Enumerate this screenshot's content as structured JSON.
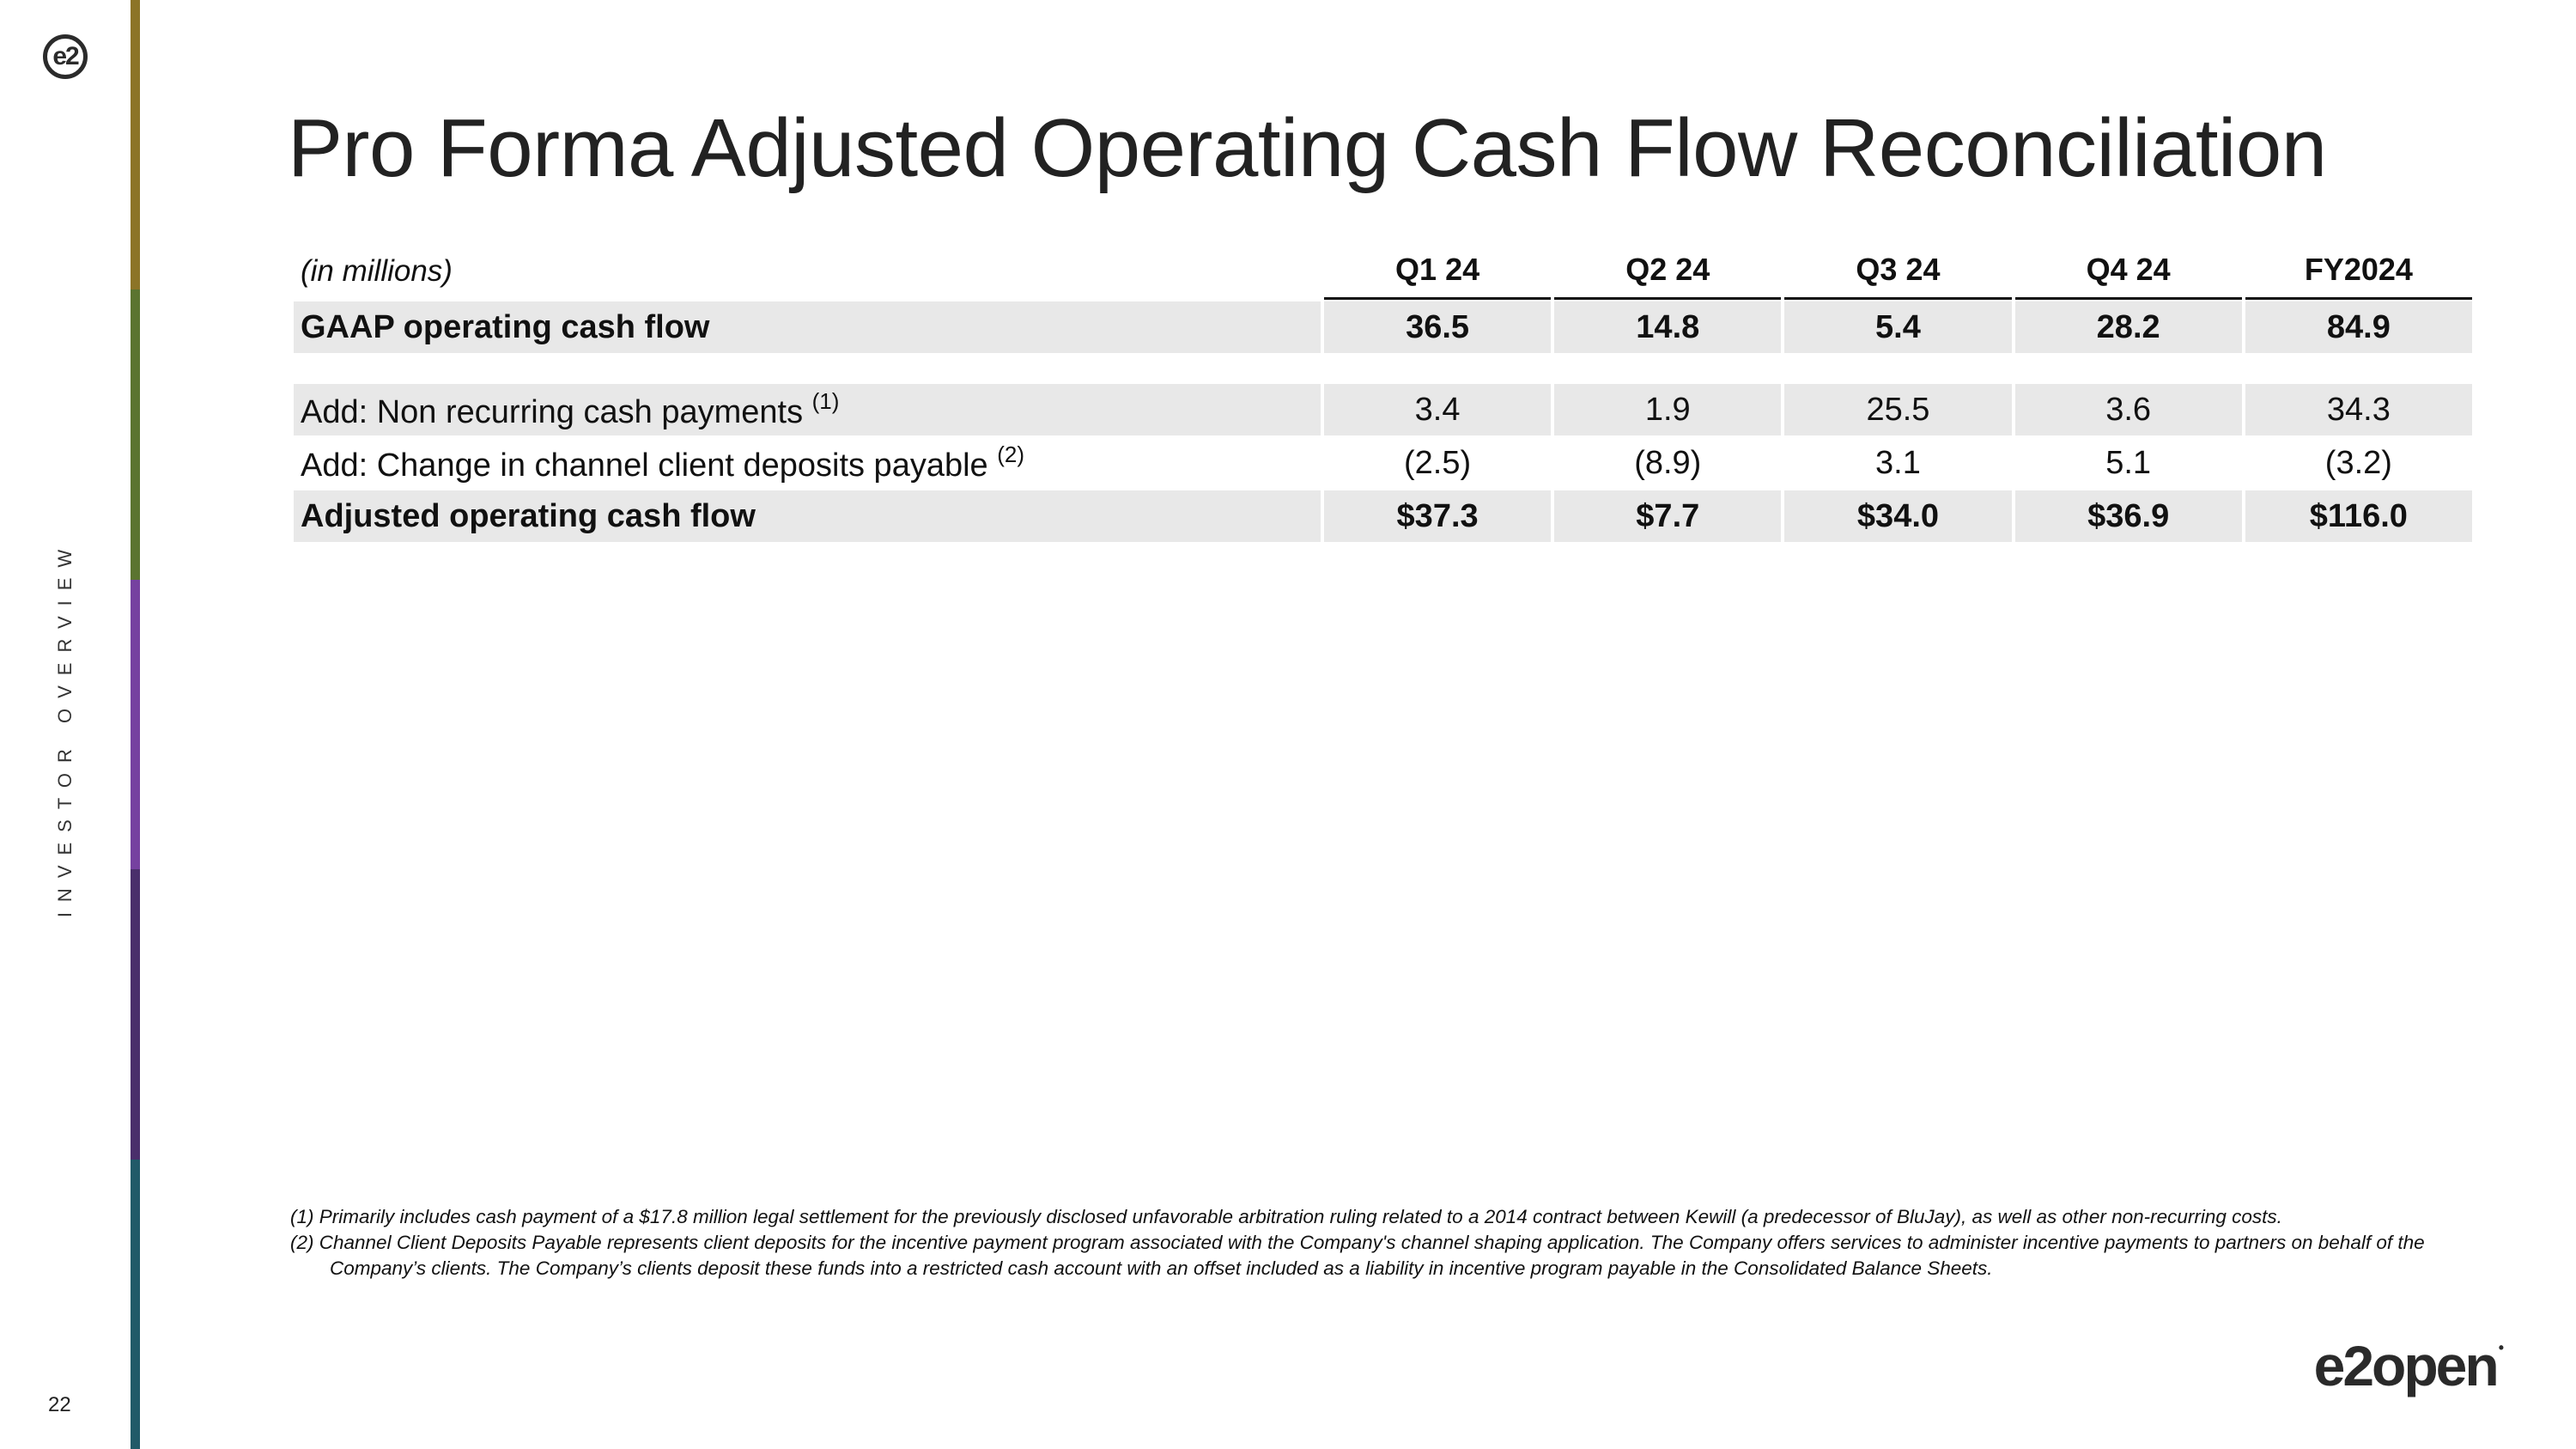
{
  "logo_mark": "e2",
  "brand_colors": [
    "#8c7427",
    "#5b7430",
    "#7641a0",
    "#4a2f6b",
    "#215a68"
  ],
  "side_label": "INVESTOR OVERVIEW",
  "page_number": "22",
  "title": "Pro Forma Adjusted Operating Cash Flow Reconciliation",
  "table": {
    "units_label": "(in millions)",
    "columns": [
      "Q1 24",
      "Q2 24",
      "Q3 24",
      "Q4 24",
      "FY2024"
    ],
    "rows": [
      {
        "label": "GAAP operating cash flow",
        "values": [
          "36.5",
          "14.8",
          "5.4",
          "28.2",
          "84.9"
        ]
      },
      {
        "label": "Add: Non recurring cash payments",
        "footnote_ref": "(1)",
        "values": [
          "3.4",
          "1.9",
          "25.5",
          "3.6",
          "34.3"
        ]
      },
      {
        "label": "Add: Change in channel client deposits payable",
        "footnote_ref": "(2)",
        "values": [
          "(2.5)",
          "(8.9)",
          "3.1",
          "5.1",
          "(3.2)"
        ]
      },
      {
        "label": "Adjusted operating cash flow",
        "values": [
          "$37.3",
          "$7.7",
          "$34.0",
          "$36.9",
          "$116.0"
        ]
      }
    ]
  },
  "footnotes": [
    "(1)  Primarily includes cash payment of a $17.8 million legal settlement for the previously disclosed unfavorable arbitration ruling related to a 2014 contract between Kewill (a predecessor of BluJay), as well as other non-recurring costs.",
    "(2) Channel Client Deposits Payable represents client deposits for the incentive payment program associated with the Company's channel shaping application. The Company offers services to administer incentive payments to partners on behalf of the Company’s clients. The Company’s clients deposit these funds into a restricted cash account with an offset included as a liability in incentive program payable in the Consolidated Balance Sheets."
  ],
  "brand": "e2open",
  "brand_trademark": "•"
}
